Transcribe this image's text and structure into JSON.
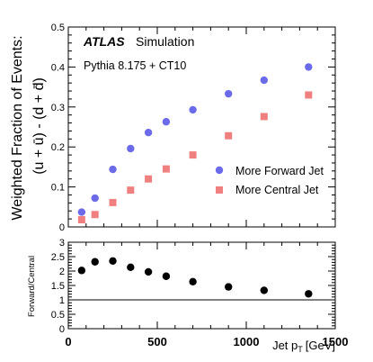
{
  "chart_data": [
    {
      "type": "scatter",
      "ylabel_line1": "Weighted Fraction of Events:",
      "ylabel_line2": "(u + ū) - (d + d̄)",
      "ylim": [
        0,
        0.5
      ],
      "yticks": [
        "0",
        "0.1",
        "0.2",
        "0.3",
        "0.4",
        "0.5"
      ],
      "xlim": [
        0,
        1500
      ],
      "atlas_label": "ATLAS",
      "atlas_sub": "Simulation",
      "generator": "Pythia 8.175 + CT10",
      "legend_position": "right",
      "series": [
        {
          "name": "More Forward Jet",
          "color": "#6b6bea",
          "marker": "circle",
          "x": [
            75,
            150,
            250,
            350,
            450,
            550,
            700,
            900,
            1100,
            1350
          ],
          "y": [
            0.037,
            0.072,
            0.144,
            0.196,
            0.236,
            0.263,
            0.293,
            0.333,
            0.367,
            0.4
          ]
        },
        {
          "name": "More Central Jet",
          "color": "#f08080",
          "marker": "square",
          "x": [
            75,
            150,
            250,
            350,
            450,
            550,
            700,
            900,
            1100,
            1350
          ],
          "y": [
            0.018,
            0.031,
            0.061,
            0.092,
            0.12,
            0.145,
            0.18,
            0.228,
            0.276,
            0.33
          ]
        }
      ]
    },
    {
      "type": "scatter",
      "ylabel": "Forward/Central",
      "xlabel": "Jet p",
      "xlabel_sub": "T",
      "xlabel_unit": "[GeV]",
      "ylim": [
        0,
        3
      ],
      "yticks": [
        "0",
        "0.5",
        "1",
        "1.5",
        "2",
        "2.5",
        "3"
      ],
      "xlim": [
        0,
        1500
      ],
      "xticks": [
        "0",
        "500",
        "1000",
        "1500"
      ],
      "reference_line": 1,
      "series": [
        {
          "name": "",
          "color": "#000000",
          "marker": "circle",
          "x": [
            75,
            150,
            250,
            350,
            450,
            550,
            700,
            900,
            1100,
            1350
          ],
          "y": [
            2.02,
            2.32,
            2.35,
            2.13,
            1.97,
            1.82,
            1.63,
            1.45,
            1.33,
            1.21
          ]
        }
      ]
    }
  ]
}
